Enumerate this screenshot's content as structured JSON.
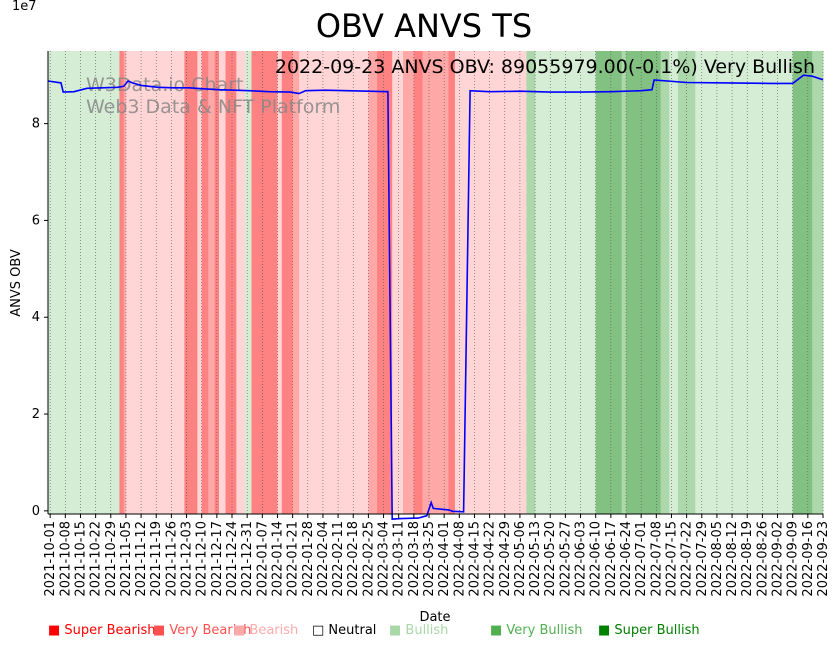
{
  "chart_data": {
    "type": "line",
    "title": "OBV ANVS TS",
    "xlabel": "Date",
    "ylabel": "ANVS OBV",
    "y_scale_label": "1e7",
    "y_ticks": [
      0,
      2,
      4,
      6,
      8
    ],
    "y_scale": 10000000,
    "ylim": [
      -650000,
      95000000
    ],
    "x_start": "2021-09-30",
    "x_end": "2022-09-23",
    "x_ticks": [
      "2021-10-01",
      "2021-10-08",
      "2021-10-15",
      "2021-10-22",
      "2021-10-29",
      "2021-11-05",
      "2021-11-12",
      "2021-11-19",
      "2021-11-26",
      "2021-12-03",
      "2021-12-10",
      "2021-12-17",
      "2021-12-24",
      "2021-12-31",
      "2022-01-07",
      "2022-01-14",
      "2022-01-21",
      "2022-01-28",
      "2022-02-04",
      "2022-02-11",
      "2022-02-18",
      "2022-02-25",
      "2022-03-04",
      "2022-03-11",
      "2022-03-18",
      "2022-03-25",
      "2022-04-01",
      "2022-04-08",
      "2022-04-15",
      "2022-04-22",
      "2022-04-29",
      "2022-05-06",
      "2022-05-13",
      "2022-05-20",
      "2022-05-27",
      "2022-06-03",
      "2022-06-10",
      "2022-06-17",
      "2022-06-24",
      "2022-07-01",
      "2022-07-08",
      "2022-07-15",
      "2022-07-22",
      "2022-07-29",
      "2022-08-05",
      "2022-08-12",
      "2022-08-19",
      "2022-08-26",
      "2022-09-02",
      "2022-09-09",
      "2022-09-16",
      "2022-09-23"
    ],
    "annotation": "2022-09-23 ANVS OBV: 89055979.00(-0.1%) Very Bullish",
    "watermark": [
      "W3Data.io Chart",
      "Web3 Data & NFT Platform"
    ],
    "grid": "vertical dotted at weekly ticks",
    "legend_placement": "bottom",
    "legend": [
      {
        "label": "Super Bearish",
        "color": "#ff0000",
        "marker": "■"
      },
      {
        "label": "Very Bearish",
        "color": "#ff5050",
        "marker": "■"
      },
      {
        "label": "Bearish",
        "color": "#ffaaaa",
        "marker": "■"
      },
      {
        "label": "Neutral",
        "color": "#000000",
        "marker": "□"
      },
      {
        "label": "Bullish",
        "color": "#a8d8a8",
        "marker": "■"
      },
      {
        "label": "Very Bullish",
        "color": "#50b050",
        "marker": "■"
      },
      {
        "label": "Super Bullish",
        "color": "#008000",
        "marker": "■"
      }
    ],
    "line_color": "#0000ff",
    "state_colors": {
      "bull_light": "#d5ecd5",
      "bull_mid": "#acd8ac",
      "bull_dark": "#82c182",
      "bear_light": "#ffd5d5",
      "bear_mid": "#ffa8a8",
      "bear_dark": "#ff8282"
    },
    "regimes": [
      {
        "start": "2021-09-30",
        "end": "2021-11-02",
        "state": "bull_light"
      },
      {
        "start": "2021-11-02",
        "end": "2021-11-04",
        "state": "bear_dark"
      },
      {
        "start": "2021-11-04",
        "end": "2021-11-05",
        "state": "bear_mid"
      },
      {
        "start": "2021-11-05",
        "end": "2021-12-02",
        "state": "bear_light"
      },
      {
        "start": "2021-12-02",
        "end": "2021-12-08",
        "state": "bear_dark"
      },
      {
        "start": "2021-12-08",
        "end": "2021-12-10",
        "state": "bear_light"
      },
      {
        "start": "2021-12-10",
        "end": "2021-12-13",
        "state": "bear_dark"
      },
      {
        "start": "2021-12-13",
        "end": "2021-12-16",
        "state": "bear_mid"
      },
      {
        "start": "2021-12-16",
        "end": "2021-12-18",
        "state": "bear_dark"
      },
      {
        "start": "2021-12-18",
        "end": "2021-12-21",
        "state": "bear_light"
      },
      {
        "start": "2021-12-21",
        "end": "2021-12-26",
        "state": "bear_dark"
      },
      {
        "start": "2021-12-26",
        "end": "2021-12-30",
        "state": "bear_light"
      },
      {
        "start": "2021-12-30",
        "end": "2022-01-02",
        "state": "bull_light"
      },
      {
        "start": "2022-01-02",
        "end": "2022-01-14",
        "state": "bear_dark"
      },
      {
        "start": "2022-01-14",
        "end": "2022-01-16",
        "state": "bear_light"
      },
      {
        "start": "2022-01-16",
        "end": "2022-01-21",
        "state": "bear_dark"
      },
      {
        "start": "2022-01-21",
        "end": "2022-01-24",
        "state": "bear_mid"
      },
      {
        "start": "2022-01-24",
        "end": "2022-02-25",
        "state": "bear_light"
      },
      {
        "start": "2022-02-25",
        "end": "2022-03-01",
        "state": "bear_mid"
      },
      {
        "start": "2022-03-01",
        "end": "2022-03-08",
        "state": "bear_dark"
      },
      {
        "start": "2022-03-08",
        "end": "2022-03-13",
        "state": "bear_light"
      },
      {
        "start": "2022-03-13",
        "end": "2022-03-18",
        "state": "bear_mid"
      },
      {
        "start": "2022-03-18",
        "end": "2022-03-22",
        "state": "bear_dark"
      },
      {
        "start": "2022-03-22",
        "end": "2022-03-27",
        "state": "bear_mid"
      },
      {
        "start": "2022-03-27",
        "end": "2022-04-03",
        "state": "bear_mid"
      },
      {
        "start": "2022-04-03",
        "end": "2022-04-06",
        "state": "bear_dark"
      },
      {
        "start": "2022-04-06",
        "end": "2022-05-09",
        "state": "bear_light"
      },
      {
        "start": "2022-05-09",
        "end": "2022-05-13",
        "state": "bull_mid"
      },
      {
        "start": "2022-05-13",
        "end": "2022-06-10",
        "state": "bull_light"
      },
      {
        "start": "2022-06-10",
        "end": "2022-06-22",
        "state": "bull_dark"
      },
      {
        "start": "2022-06-22",
        "end": "2022-06-24",
        "state": "bull_mid"
      },
      {
        "start": "2022-06-24",
        "end": "2022-07-10",
        "state": "bull_dark"
      },
      {
        "start": "2022-07-10",
        "end": "2022-07-14",
        "state": "bull_mid"
      },
      {
        "start": "2022-07-14",
        "end": "2022-07-18",
        "state": "bull_light"
      },
      {
        "start": "2022-07-18",
        "end": "2022-07-26",
        "state": "bull_mid"
      },
      {
        "start": "2022-07-26",
        "end": "2022-09-09",
        "state": "bull_light"
      },
      {
        "start": "2022-09-09",
        "end": "2022-09-18",
        "state": "bull_dark"
      },
      {
        "start": "2022-09-18",
        "end": "2022-09-23",
        "state": "bull_mid"
      }
    ],
    "series": [
      {
        "points": [
          [
            "2021-09-30",
            88800000
          ],
          [
            "2021-10-06",
            88400000
          ],
          [
            "2021-10-07",
            86500000
          ],
          [
            "2021-10-12",
            86600000
          ],
          [
            "2021-10-18",
            87300000
          ],
          [
            "2021-10-25",
            87400000
          ],
          [
            "2021-11-01",
            87500000
          ],
          [
            "2021-11-04",
            87700000
          ],
          [
            "2021-11-06",
            88800000
          ],
          [
            "2021-11-08",
            88400000
          ],
          [
            "2021-11-12",
            87900000
          ],
          [
            "2021-11-20",
            87500000
          ],
          [
            "2021-11-27",
            87400000
          ],
          [
            "2021-12-04",
            87400000
          ],
          [
            "2021-12-11",
            87200000
          ],
          [
            "2021-12-18",
            87000000
          ],
          [
            "2021-12-25",
            86900000
          ],
          [
            "2022-01-01",
            86800000
          ],
          [
            "2022-01-10",
            86600000
          ],
          [
            "2022-01-20",
            86500000
          ],
          [
            "2022-01-24",
            86200000
          ],
          [
            "2022-01-27",
            86800000
          ],
          [
            "2022-02-05",
            86900000
          ],
          [
            "2022-02-15",
            86800000
          ],
          [
            "2022-02-25",
            86700000
          ],
          [
            "2022-03-06",
            86600000
          ],
          [
            "2022-03-08",
            -1700000
          ],
          [
            "2022-03-12",
            -1600000
          ],
          [
            "2022-03-20",
            -1500000
          ],
          [
            "2022-03-24",
            -1000000
          ],
          [
            "2022-03-26",
            1700000
          ],
          [
            "2022-03-27",
            500000
          ],
          [
            "2022-04-03",
            200000
          ],
          [
            "2022-04-05",
            -100000
          ],
          [
            "2022-04-10",
            -200000
          ],
          [
            "2022-04-13",
            86800000
          ],
          [
            "2022-04-22",
            86600000
          ],
          [
            "2022-05-06",
            86700000
          ],
          [
            "2022-05-20",
            86500000
          ],
          [
            "2022-06-03",
            86500000
          ],
          [
            "2022-06-17",
            86600000
          ],
          [
            "2022-07-01",
            86800000
          ],
          [
            "2022-07-06",
            87000000
          ],
          [
            "2022-07-07",
            89000000
          ],
          [
            "2022-07-22",
            88500000
          ],
          [
            "2022-08-10",
            88400000
          ],
          [
            "2022-08-30",
            88300000
          ],
          [
            "2022-09-09",
            88300000
          ],
          [
            "2022-09-14",
            90000000
          ],
          [
            "2022-09-18",
            89800000
          ],
          [
            "2022-09-23",
            89055979
          ]
        ]
      }
    ]
  }
}
